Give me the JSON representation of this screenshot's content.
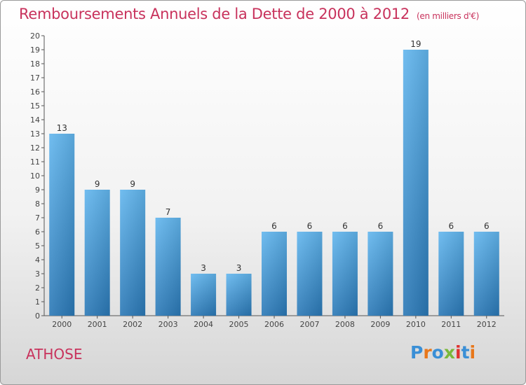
{
  "header": {
    "title": "Remboursements Annuels de la Dette de 2000 à 2012",
    "subtitle": "(en milliers d'€)"
  },
  "footer": {
    "commune": "ATHOSE",
    "logo": "Proxiti"
  },
  "colors": {
    "title": "#c8325c",
    "bar_light": "#5db0ea",
    "bar_dark": "#2a7ab8"
  },
  "chart_data": {
    "type": "bar",
    "title": "Remboursements Annuels de la Dette de 2000 à 2012",
    "subtitle": "(en milliers d'€)",
    "xlabel": "",
    "ylabel": "",
    "categories": [
      "2000",
      "2001",
      "2002",
      "2003",
      "2004",
      "2005",
      "2006",
      "2007",
      "2008",
      "2009",
      "2010",
      "2011",
      "2012"
    ],
    "values": [
      13,
      9,
      9,
      7,
      3,
      3,
      6,
      6,
      6,
      6,
      19,
      6,
      6
    ],
    "ylim": [
      0,
      20
    ],
    "yticks": [
      0,
      1,
      2,
      3,
      4,
      5,
      6,
      7,
      8,
      9,
      10,
      11,
      12,
      13,
      14,
      15,
      16,
      17,
      18,
      19,
      20
    ],
    "grid": false,
    "data_labels": true
  }
}
